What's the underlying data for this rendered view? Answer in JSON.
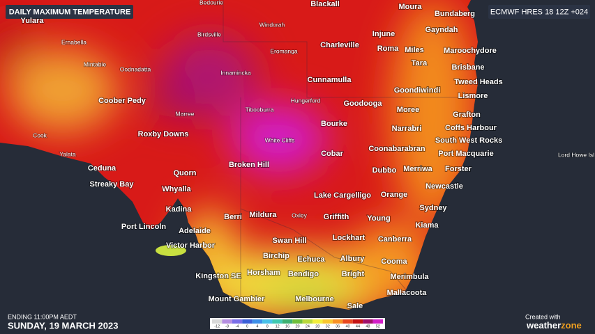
{
  "header": {
    "title": "DAILY MAXIMUM TEMPERATURE",
    "model": "ECMWF HRES 18 12Z +024"
  },
  "footer": {
    "ending": "ENDING 11:00PM AEDT",
    "date": "SUNDAY, 19 MARCH 2023",
    "created": "Created with",
    "brand_a": "weather",
    "brand_b": "zone"
  },
  "major_places": [
    "Blackall",
    "Moura",
    "Bundaberg",
    "Yulara",
    "Injune",
    "Gayndah",
    "Charleville",
    "Roma",
    "Miles",
    "Maroochydore",
    "Tara",
    "Brisbane",
    "Cunnamulla",
    "Tweed Heads",
    "Goondiwindi",
    "Lismore",
    "Coober Pedy",
    "Goodooga",
    "Moree",
    "Grafton",
    "Bourke",
    "Narrabri",
    "Coffs Harbour",
    "Roxby Downs",
    "South West Rocks",
    "Coonabarabran",
    "Port Macquarie",
    "Cobar",
    "Ceduna",
    "Quorn",
    "Broken Hill",
    "Dubbo",
    "Merriwa",
    "Forster",
    "Streaky Bay",
    "Whyalla",
    "Lake Cargelligo",
    "Orange",
    "Newcastle",
    "Kadina",
    "Sydney",
    "Mildura",
    "Griffith",
    "Young",
    "Berri",
    "Port Lincoln",
    "Adelaide",
    "Kiama",
    "Lockhart",
    "Canberra",
    "Swan Hill",
    "Victor Harbor",
    "Birchip",
    "Echuca",
    "Albury",
    "Cooma",
    "Horsham",
    "Bendigo",
    "Bright",
    "Merimbula",
    "Kingston SE",
    "Mallacoota",
    "Mount Gambier",
    "Melbourne",
    "Sale"
  ],
  "minor_places": [
    "Bedourie",
    "Windorah",
    "Birdsville",
    "Ernabella",
    "Eromanga",
    "Mintabie",
    "Oodnadatta",
    "Innamincka",
    "Hungerford",
    "Marree",
    "Tibooburra",
    "Cook",
    "White Cliffs",
    "Yalata",
    "Oxley",
    "Lord Howe Isl"
  ],
  "legend": {
    "ticks": [
      -12,
      -8,
      -4,
      0,
      4,
      8,
      12,
      16,
      20,
      24,
      28,
      32,
      36,
      40,
      44,
      48,
      52
    ],
    "colors": [
      "#d9d9d9",
      "#b48ee0",
      "#7a6ee8",
      "#3b5fd8",
      "#3d8fe8",
      "#48c0e8",
      "#3fc8b0",
      "#3db070",
      "#6fbf3a",
      "#b8d83a",
      "#f2ee3c",
      "#f8c62e",
      "#f79124",
      "#e8481e",
      "#c41414",
      "#a0106a",
      "#d21ec8"
    ]
  }
}
